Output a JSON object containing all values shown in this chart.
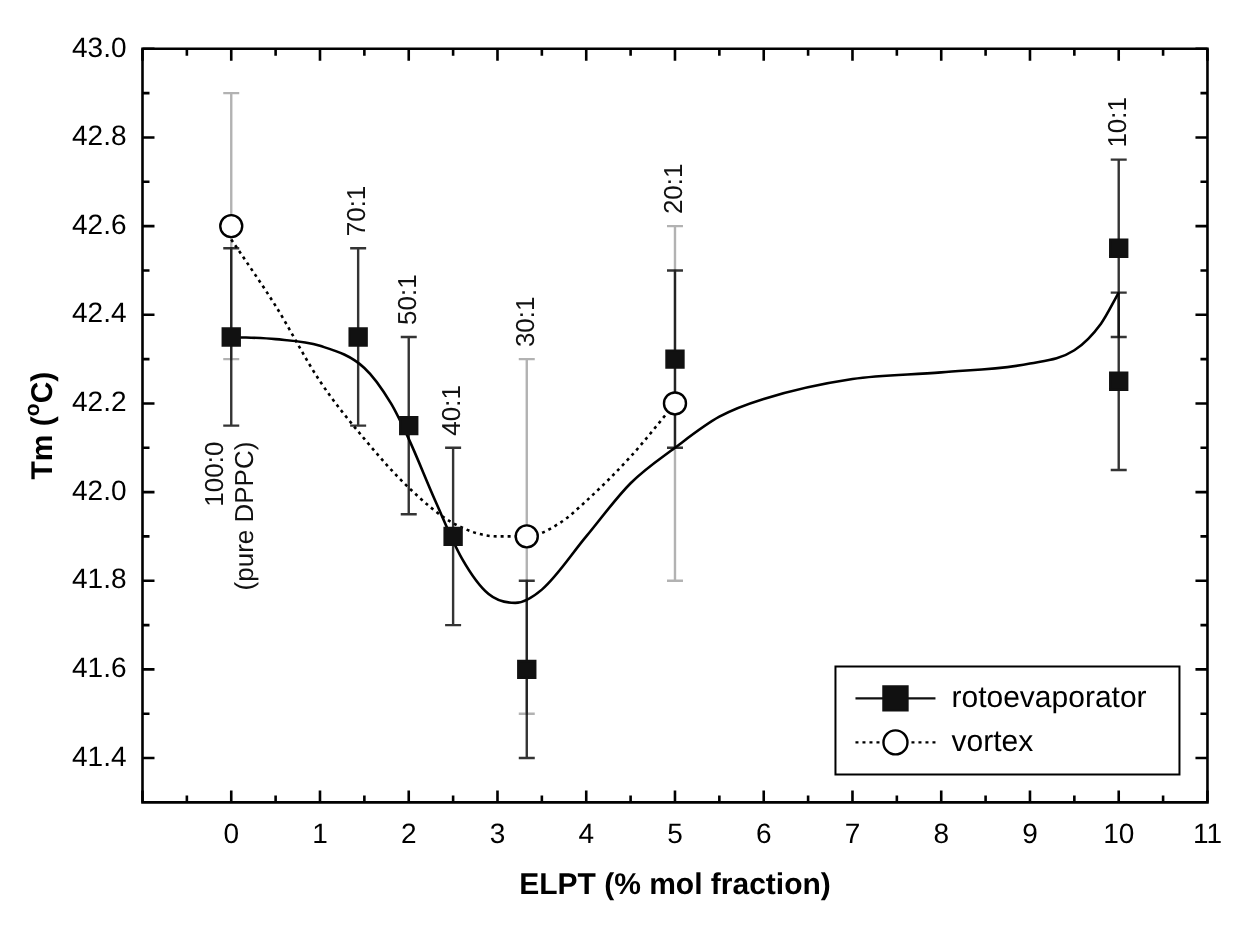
{
  "chart_data": {
    "type": "scatter",
    "xlabel": "ELPT (% mol fraction)",
    "ylabel": "Tm ($^{o}$C)",
    "xlim": [
      -1,
      11
    ],
    "xticks": [
      0,
      1,
      2,
      3,
      4,
      5,
      6,
      7,
      8,
      9,
      10,
      11
    ],
    "ylim": [
      41.3,
      43.0
    ],
    "yticks": [
      41.4,
      41.6,
      41.8,
      {
        "value": 42,
        "label": "42.0"
      },
      42.2,
      42.4,
      42.6,
      42.8,
      {
        "value": 43,
        "label": "43.0"
      }
    ],
    "grid": false,
    "legend": "bottom right",
    "series": [
      {
        "name": "rotoevaporator",
        "marker": "square",
        "color": "#111111",
        "x": [
          0,
          1.43,
          2,
          2.5,
          3.33,
          5,
          10,
          10
        ],
        "values": [
          42.35,
          42.35,
          42.15,
          41.9,
          41.6,
          42.3,
          42.55,
          42.25
        ],
        "errors": [
          0.2,
          0.2,
          0.2,
          0.2,
          0.2,
          0.2,
          0.2,
          0.2
        ]
      },
      {
        "name": "vortex",
        "marker": "circle",
        "color": "#000000",
        "x": [
          0,
          3.33,
          5
        ],
        "values": [
          42.6,
          41.9,
          42.2
        ],
        "errors": [
          0.3,
          0.4,
          0.4
        ]
      },
      {
        "type": "line",
        "line_style": "solid",
        "marker": "none",
        "color": "#000000",
        "x": [
          0,
          0.5,
          1,
          1.5,
          1.8,
          2,
          2.3,
          2.6,
          2.9,
          3.2,
          3.5,
          4,
          4.5,
          5,
          5.5,
          6,
          7,
          8,
          9,
          9.5,
          9.8,
          10
        ],
        "values": [
          42.35,
          42.345,
          42.33,
          42.28,
          42.2,
          42.12,
          41.98,
          41.85,
          41.77,
          41.75,
          41.78,
          41.9,
          42.02,
          42.1,
          42.17,
          42.21,
          42.255,
          42.27,
          42.29,
          42.32,
          42.38,
          42.45
        ]
      },
      {
        "type": "line",
        "line_style": "dotted",
        "marker": "none",
        "color": "#000000",
        "x": [
          0,
          0.5,
          1,
          1.5,
          2,
          2.5,
          3,
          3.33,
          3.7,
          4,
          4.5,
          5
        ],
        "values": [
          42.57,
          42.42,
          42.25,
          42.12,
          42.01,
          41.93,
          41.9,
          41.9,
          41.93,
          41.98,
          42.08,
          42.2
        ]
      }
    ],
    "annotations": [
      "100:0\n(pure DPPC)",
      "70:1",
      "50:1",
      "40:1",
      "30:1",
      "20:1",
      "10:1"
    ]
  }
}
